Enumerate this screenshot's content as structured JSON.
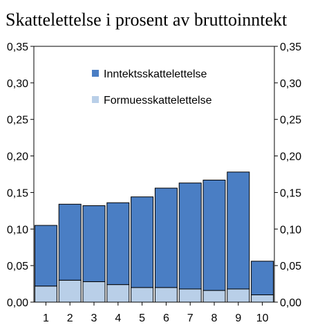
{
  "title": "Skattelettelse i prosent av bruttoinntekt",
  "chart_data": {
    "type": "bar",
    "stacked": true,
    "title": "Skattelettelse i prosent av bruttoinntekt",
    "xlabel": "",
    "ylabel": "",
    "categories": [
      "1",
      "2",
      "3",
      "4",
      "5",
      "6",
      "7",
      "8",
      "9",
      "10"
    ],
    "series": [
      {
        "name": "Formuesskattelettelse",
        "color": "#b9cfe8",
        "values": [
          0.022,
          0.03,
          0.028,
          0.024,
          0.02,
          0.02,
          0.018,
          0.016,
          0.018,
          0.01
        ]
      },
      {
        "name": "Inntektsskattelettelse",
        "color": "#4a7ec4",
        "values": [
          0.083,
          0.104,
          0.104,
          0.112,
          0.124,
          0.136,
          0.145,
          0.151,
          0.16,
          0.046
        ]
      }
    ],
    "ylim": [
      0,
      0.35
    ],
    "y_ticks": [
      "0,00",
      "0,05",
      "0,10",
      "0,15",
      "0,20",
      "0,25",
      "0,30",
      "0,35"
    ],
    "y_tick_values": [
      0,
      0.05,
      0.1,
      0.15,
      0.2,
      0.25,
      0.3,
      0.35
    ],
    "legend_order": [
      "Inntektsskattelettelse",
      "Formuesskattelettelse"
    ],
    "legend_position": "top-center",
    "grid": false,
    "secondary_axis": "right mirrors left"
  }
}
